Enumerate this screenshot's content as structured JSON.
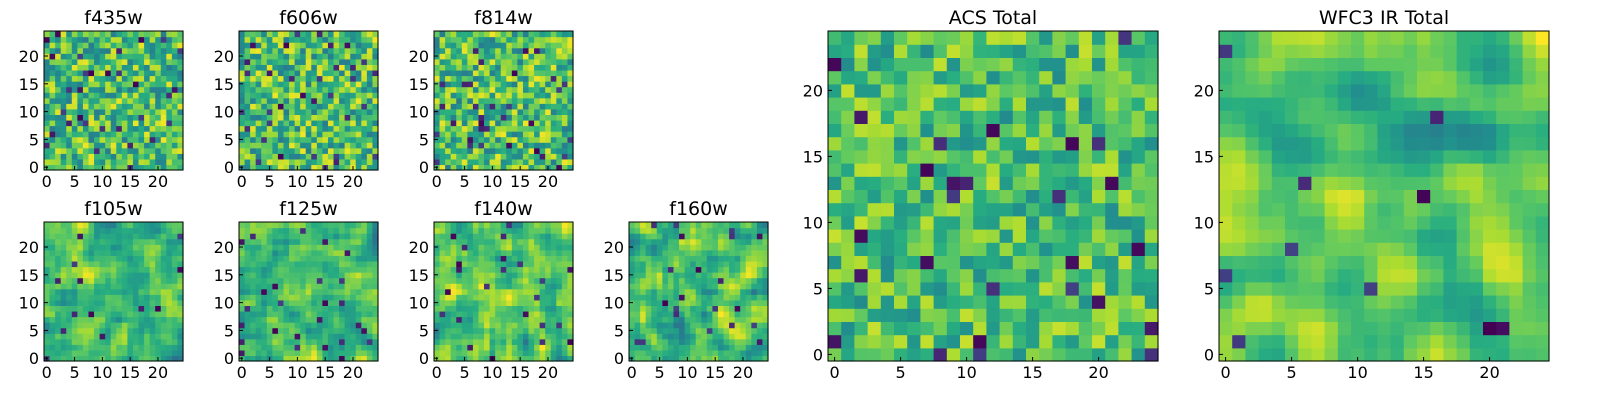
{
  "colormap": {
    "name": "viridis",
    "stops": [
      "#440154",
      "#472c7a",
      "#3b518b",
      "#2c718e",
      "#21908d",
      "#27ad81",
      "#5cc863",
      "#aadc32",
      "#fde725"
    ]
  },
  "chart_data": [
    {
      "type": "heatmap",
      "title": "f435w",
      "grid": [
        25,
        25
      ],
      "xlim": [
        0,
        24
      ],
      "ylim": [
        0,
        24
      ],
      "xticks": [
        "0",
        "5",
        "10",
        "15",
        "20"
      ],
      "yticks": [
        "0",
        "5",
        "10",
        "15",
        "20"
      ],
      "value_range": [
        0,
        1
      ],
      "mean": 0.7,
      "noise": 0.28,
      "smooth": 0,
      "dark_fraction": 0.05,
      "seed": 11,
      "values": []
    },
    {
      "type": "heatmap",
      "title": "f606w",
      "grid": [
        25,
        25
      ],
      "xlim": [
        0,
        24
      ],
      "ylim": [
        0,
        24
      ],
      "xticks": [
        "0",
        "5",
        "10",
        "15",
        "20"
      ],
      "yticks": [
        "0",
        "5",
        "10",
        "15",
        "20"
      ],
      "value_range": [
        0,
        1
      ],
      "mean": 0.7,
      "noise": 0.28,
      "smooth": 0,
      "dark_fraction": 0.05,
      "seed": 23,
      "values": []
    },
    {
      "type": "heatmap",
      "title": "f814w",
      "grid": [
        25,
        25
      ],
      "xlim": [
        0,
        24
      ],
      "ylim": [
        0,
        24
      ],
      "xticks": [
        "0",
        "5",
        "10",
        "15",
        "20"
      ],
      "yticks": [
        "0",
        "5",
        "10",
        "15",
        "20"
      ],
      "value_range": [
        0,
        1
      ],
      "mean": 0.7,
      "noise": 0.28,
      "smooth": 0,
      "dark_fraction": 0.05,
      "seed": 37,
      "values": []
    },
    {
      "type": "heatmap",
      "title": "f105w",
      "grid": [
        25,
        25
      ],
      "xlim": [
        0,
        24
      ],
      "ylim": [
        0,
        24
      ],
      "xticks": [
        "0",
        "5",
        "10",
        "15",
        "20"
      ],
      "yticks": [
        "0",
        "5",
        "10",
        "15",
        "20"
      ],
      "value_range": [
        0,
        1
      ],
      "mean": 0.68,
      "noise": 0.3,
      "smooth": 1,
      "dark_fraction": 0.03,
      "seed": 41,
      "values": []
    },
    {
      "type": "heatmap",
      "title": "f125w",
      "grid": [
        25,
        25
      ],
      "xlim": [
        0,
        24
      ],
      "ylim": [
        0,
        24
      ],
      "xticks": [
        "0",
        "5",
        "10",
        "15",
        "20"
      ],
      "yticks": [
        "0",
        "5",
        "10",
        "15",
        "20"
      ],
      "value_range": [
        0,
        1
      ],
      "mean": 0.68,
      "noise": 0.3,
      "smooth": 1,
      "dark_fraction": 0.03,
      "seed": 53,
      "values": []
    },
    {
      "type": "heatmap",
      "title": "f140w",
      "grid": [
        25,
        25
      ],
      "xlim": [
        0,
        24
      ],
      "ylim": [
        0,
        24
      ],
      "xticks": [
        "0",
        "5",
        "10",
        "15",
        "20"
      ],
      "yticks": [
        "0",
        "5",
        "10",
        "15",
        "20"
      ],
      "value_range": [
        0,
        1
      ],
      "mean": 0.7,
      "noise": 0.3,
      "smooth": 1,
      "dark_fraction": 0.03,
      "seed": 67,
      "values": []
    },
    {
      "type": "heatmap",
      "title": "f160w",
      "grid": [
        25,
        25
      ],
      "xlim": [
        0,
        24
      ],
      "ylim": [
        0,
        24
      ],
      "xticks": [
        "0",
        "5",
        "10",
        "15",
        "20"
      ],
      "yticks": [
        "0",
        "5",
        "10",
        "15",
        "20"
      ],
      "value_range": [
        0,
        1
      ],
      "mean": 0.7,
      "noise": 0.3,
      "smooth": 1,
      "dark_fraction": 0.03,
      "seed": 79,
      "values": []
    },
    {
      "type": "heatmap",
      "title": "ACS Total",
      "grid": [
        25,
        25
      ],
      "xlim": [
        0,
        24
      ],
      "ylim": [
        0,
        24
      ],
      "xticks": [
        "0",
        "5",
        "10",
        "15",
        "20"
      ],
      "yticks": [
        "0",
        "5",
        "10",
        "15",
        "20"
      ],
      "value_range": [
        0,
        1
      ],
      "mean": 0.7,
      "noise": 0.22,
      "smooth": 0,
      "dark_fraction": 0.035,
      "seed": 83,
      "values": []
    },
    {
      "type": "heatmap",
      "title": "WFC3 IR Total",
      "grid": [
        25,
        25
      ],
      "xlim": [
        0,
        24
      ],
      "ylim": [
        0,
        24
      ],
      "xticks": [
        "0",
        "5",
        "10",
        "15",
        "20"
      ],
      "yticks": [
        "0",
        "5",
        "10",
        "15",
        "20"
      ],
      "value_range": [
        0,
        1
      ],
      "mean": 0.72,
      "noise": 0.28,
      "smooth": 2,
      "dark_fraction": 0.02,
      "seed": 97,
      "values": []
    }
  ]
}
